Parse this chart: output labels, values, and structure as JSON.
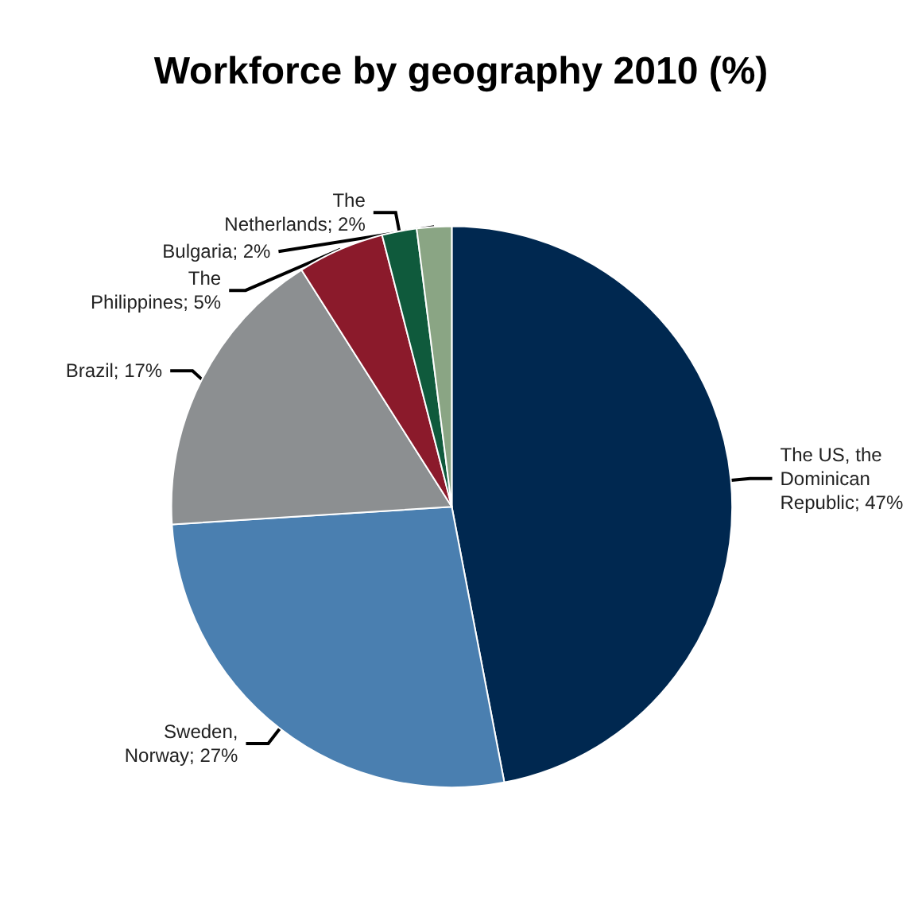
{
  "chart_data": {
    "type": "pie",
    "title": "Workforce by geography 2010 (%)",
    "categories": [
      "The US, the Dominican Republic",
      "Sweden, Norway",
      "Brazil",
      "The Philippines",
      "The Netherlands",
      "Bulgaria"
    ],
    "values": [
      47,
      27,
      17,
      5,
      2,
      2
    ],
    "colors": [
      "#002850",
      "#4a7fb0",
      "#8c8f91",
      "#8b1a2b",
      "#0f5a3c",
      "#8aa584"
    ],
    "value_labels": [
      "47%",
      "27%",
      "17%",
      "5%",
      "2%",
      "2%"
    ],
    "legend": false
  }
}
